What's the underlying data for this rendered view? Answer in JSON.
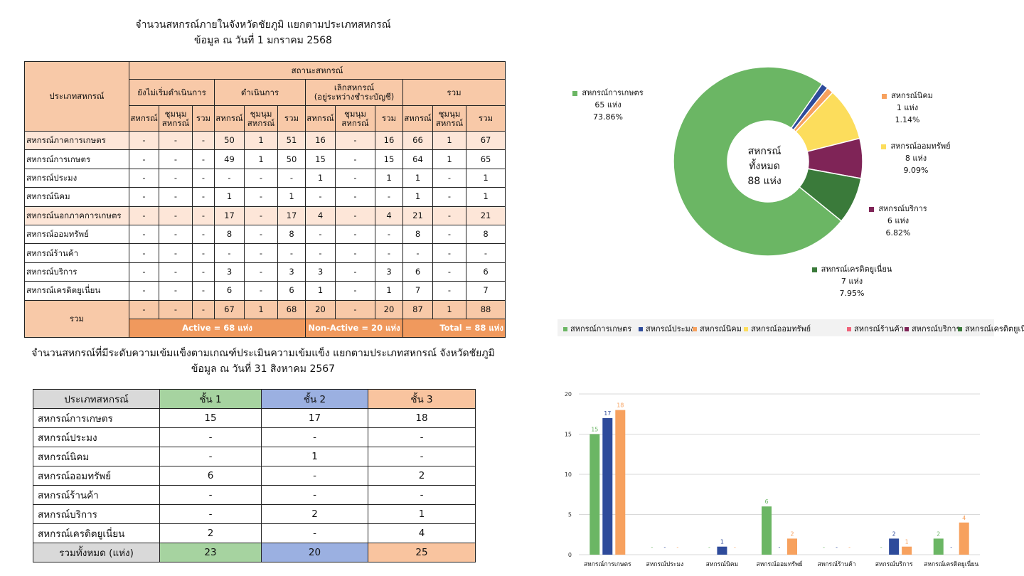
{
  "table1": {
    "title_line1": "จำนวนสหกรณ์ภายในจังหวัดชัยภูมิ แยกตามประเภทสหกรณ์",
    "title_line2": "ข้อมูล ณ วันที่ 1 มกราคม 2568",
    "col_type": "ประเภทสหกรณ์",
    "col_status": "สถานะสหกรณ์",
    "groups": [
      "ยังไม่เริ่มดำเนินการ",
      "ดำเนินการ",
      "เลิกสหกรณ์\n(อยู่ระหว่างชำระบัญชี)",
      "รวม"
    ],
    "sub": [
      "สหกรณ์",
      "ชุมนุม\nสหกรณ์",
      "รวม"
    ],
    "rows": [
      {
        "name": "สหกรณ์ภาคการเกษตร",
        "group": true,
        "vals": [
          "-",
          "-",
          "-",
          "50",
          "1",
          "51",
          "16",
          "-",
          "16",
          "66",
          "1",
          "67"
        ]
      },
      {
        "name": "สหกรณ์การเกษตร",
        "group": false,
        "vals": [
          "-",
          "-",
          "-",
          "49",
          "1",
          "50",
          "15",
          "-",
          "15",
          "64",
          "1",
          "65"
        ]
      },
      {
        "name": "สหกรณ์ประมง",
        "group": false,
        "vals": [
          "-",
          "-",
          "-",
          "-",
          "-",
          "-",
          "1",
          "-",
          "1",
          "1",
          "-",
          "1"
        ]
      },
      {
        "name": "สหกรณ์นิคม",
        "group": false,
        "vals": [
          "-",
          "-",
          "-",
          "1",
          "-",
          "1",
          "-",
          "-",
          "-",
          "1",
          "-",
          "1"
        ]
      },
      {
        "name": "สหกรณ์นอกภาคการเกษตร",
        "group": true,
        "vals": [
          "-",
          "-",
          "-",
          "17",
          "-",
          "17",
          "4",
          "-",
          "4",
          "21",
          "-",
          "21"
        ]
      },
      {
        "name": "สหกรณ์ออมทรัพย์",
        "group": false,
        "vals": [
          "-",
          "-",
          "-",
          "8",
          "-",
          "8",
          "-",
          "-",
          "-",
          "8",
          "-",
          "8"
        ]
      },
      {
        "name": "สหกรณ์ร้านค้า",
        "group": false,
        "vals": [
          "-",
          "-",
          "-",
          "-",
          "-",
          "-",
          "-",
          "-",
          "-",
          "-",
          "-",
          "-"
        ]
      },
      {
        "name": "สหกรณ์บริการ",
        "group": false,
        "vals": [
          "-",
          "-",
          "-",
          "3",
          "-",
          "3",
          "3",
          "-",
          "3",
          "6",
          "-",
          "6"
        ]
      },
      {
        "name": "สหกรณ์เครดิตยูเนี่ยน",
        "group": false,
        "vals": [
          "-",
          "-",
          "-",
          "6",
          "-",
          "6",
          "1",
          "-",
          "1",
          "7",
          "-",
          "7"
        ]
      }
    ],
    "total_label": "รวม",
    "total_vals": [
      "-",
      "-",
      "-",
      "67",
      "1",
      "68",
      "20",
      "-",
      "20",
      "87",
      "1",
      "88"
    ],
    "active": "Active = 68 แห่ง",
    "nonactive": "Non-Active = 20 แห่ง",
    "total_text": "Total = 88 แห่ง"
  },
  "table2": {
    "title_line1": "จำนวนสหกรณ์ที่มีระดับความเข้มแข็งตามเกณฑ์ประเมินความเข้มแข็ง แยกตามประเภทสหกรณ์ จังหวัดชัยภูมิ",
    "title_line2": "ข้อมูล ณ วันที่ 31 สิงหาคม 2567",
    "headers": [
      "ประเภทสหกรณ์",
      "ชั้น 1",
      "ชั้น 2",
      "ชั้น 3"
    ],
    "rows": [
      {
        "name": "สหกรณ์การเกษตร",
        "vals": [
          "15",
          "17",
          "18"
        ]
      },
      {
        "name": "สหกรณ์ประมง",
        "vals": [
          "-",
          "-",
          "-"
        ]
      },
      {
        "name": "สหกรณ์นิคม",
        "vals": [
          "-",
          "1",
          "-"
        ]
      },
      {
        "name": "สหกรณ์ออมทรัพย์",
        "vals": [
          "6",
          "-",
          "2"
        ]
      },
      {
        "name": "สหกรณ์ร้านค้า",
        "vals": [
          "-",
          "-",
          "-"
        ]
      },
      {
        "name": "สหกรณ์บริการ",
        "vals": [
          "-",
          "2",
          "1"
        ]
      },
      {
        "name": "สหกรณ์เครดิตยูเนี่ยน",
        "vals": [
          "2",
          "-",
          "4"
        ]
      }
    ],
    "total_label": "รวมทั้งหมด (แห่ง)",
    "total_vals": [
      "23",
      "20",
      "25"
    ]
  },
  "chart_data": [
    {
      "type": "pie",
      "variant": "donut",
      "center_text": [
        "สหกรณ์",
        "ทั้งหมด",
        "88 แห่ง"
      ],
      "slices": [
        {
          "name": "สหกรณ์การเกษตร",
          "value": 65,
          "count_label": "65 แห่ง",
          "pct": "73.86%",
          "color": "#6bb664"
        },
        {
          "name": "สหกรณ์ประมง",
          "value": 1,
          "count_label": "",
          "pct": "",
          "color": "#2e4b9b"
        },
        {
          "name": "สหกรณ์นิคม",
          "value": 1,
          "count_label": "1 แห่ง",
          "pct": "1.14%",
          "color": "#f7a15e"
        },
        {
          "name": "สหกรณ์ออมทรัพย์",
          "value": 8,
          "count_label": "8 แห่ง",
          "pct": "9.09%",
          "color": "#fcdd5c"
        },
        {
          "name": "สหกรณ์ร้านค้า",
          "value": 0,
          "count_label": "",
          "pct": "",
          "color": "#f0637a"
        },
        {
          "name": "สหกรณ์บริการ",
          "value": 6,
          "count_label": "6 แห่ง",
          "pct": "6.82%",
          "color": "#7f2457"
        },
        {
          "name": "สหกรณ์เครดิตยูเนี่ยน",
          "value": 7,
          "count_label": "7 แห่ง",
          "pct": "7.95%",
          "color": "#3a7a3a"
        }
      ],
      "legend": [
        "สหกรณ์การเกษตร",
        "สหกรณ์ประมง",
        "สหกรณ์นิคม",
        "สหกรณ์ออมทรัพย์",
        "สหกรณ์ร้านค้า",
        "สหกรณ์บริการ",
        "สหกรณ์เครดิตยูเนี่ยน"
      ],
      "legend_position": "bottom"
    },
    {
      "type": "bar",
      "categories": [
        "สหกรณ์การเกษตร",
        "สหกรณ์ประมง",
        "สหกรณ์นิคม",
        "สหกรณ์ออมทรัพย์",
        "สหกรณ์ร้านค้า",
        "สหกรณ์บริการ",
        "สหกรณ์เครดิตยูเนี่ยน"
      ],
      "series": [
        {
          "values": [
            15,
            0,
            0,
            6,
            0,
            0,
            2
          ],
          "labels": [
            "15",
            "-",
            "-",
            "6",
            "-",
            "-",
            "2"
          ],
          "color": "#6bb664"
        },
        {
          "values": [
            17,
            0,
            1,
            0,
            0,
            2,
            0
          ],
          "labels": [
            "17",
            "-",
            "1",
            "-",
            "-",
            "2",
            "-"
          ],
          "color": "#2e4b9b"
        },
        {
          "values": [
            18,
            0,
            0,
            2,
            0,
            1,
            4
          ],
          "labels": [
            "18",
            "-",
            "-",
            "2",
            "-",
            "1",
            "4"
          ],
          "color": "#f7a15e"
        }
      ],
      "ylim": [
        0,
        20
      ],
      "yticks": [
        0,
        5,
        10,
        15,
        20
      ],
      "grid": true
    }
  ]
}
